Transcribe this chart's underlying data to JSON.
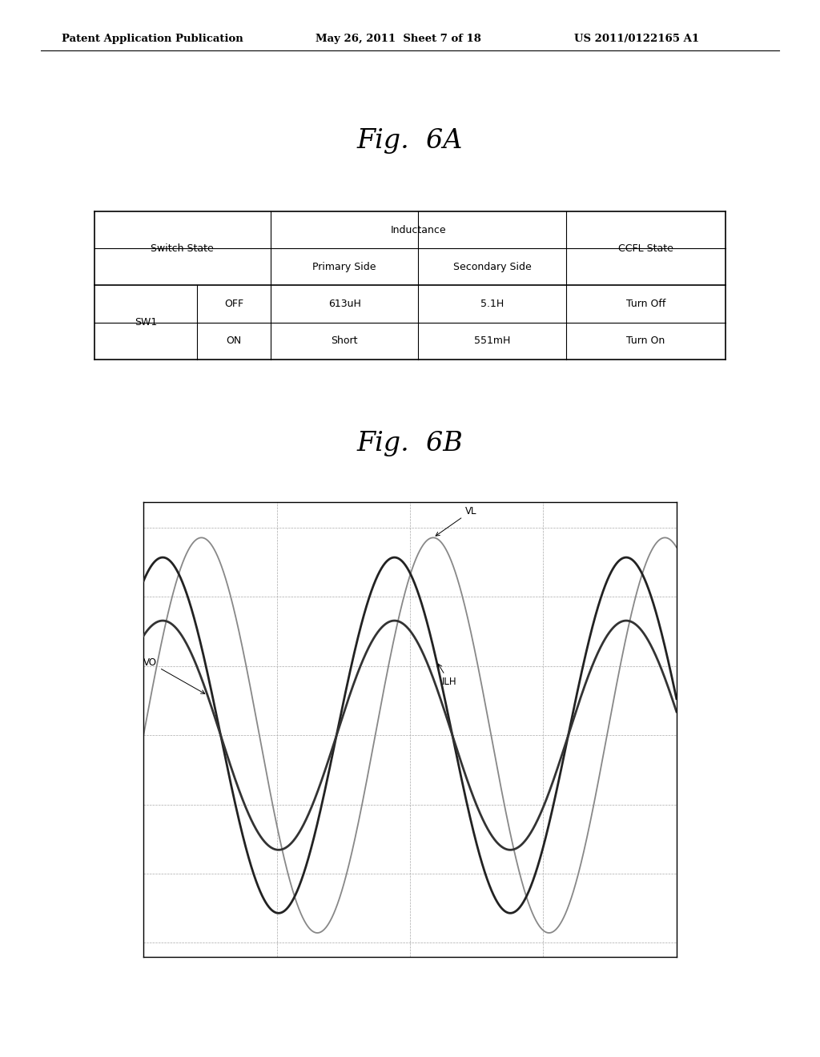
{
  "header_left": "Patent Application Publication",
  "header_mid": "May 26, 2011  Sheet 7 of 18",
  "header_right": "US 2011/0122165 A1",
  "fig6a_title": "Fig.  6A",
  "fig6b_title": "Fig.  6B",
  "table": {
    "col_headers_top": [
      "Switch State",
      "Inductance",
      "CCFL State"
    ],
    "sub_headers": [
      "Primary Side",
      "Secondary Side"
    ],
    "row_sw1_label": "SW1",
    "rows": [
      [
        "OFF",
        "613uH",
        "5.1H",
        "Turn Off"
      ],
      [
        "ON",
        "Short",
        "551mH",
        "Turn On"
      ]
    ]
  },
  "waveforms": {
    "VL_amplitude": 1.0,
    "VL_phase": 0.0,
    "VO_amplitude": 0.58,
    "VO_phase": 1.05,
    "ILH_amplitude": 0.9,
    "ILH_phase": 1.05,
    "num_cycles": 2.3,
    "label_VL": "VL",
    "label_VO": "VO",
    "label_ILH": "ILH",
    "grid_cols": 4,
    "grid_rows": 6
  },
  "bg_color": "#ffffff"
}
